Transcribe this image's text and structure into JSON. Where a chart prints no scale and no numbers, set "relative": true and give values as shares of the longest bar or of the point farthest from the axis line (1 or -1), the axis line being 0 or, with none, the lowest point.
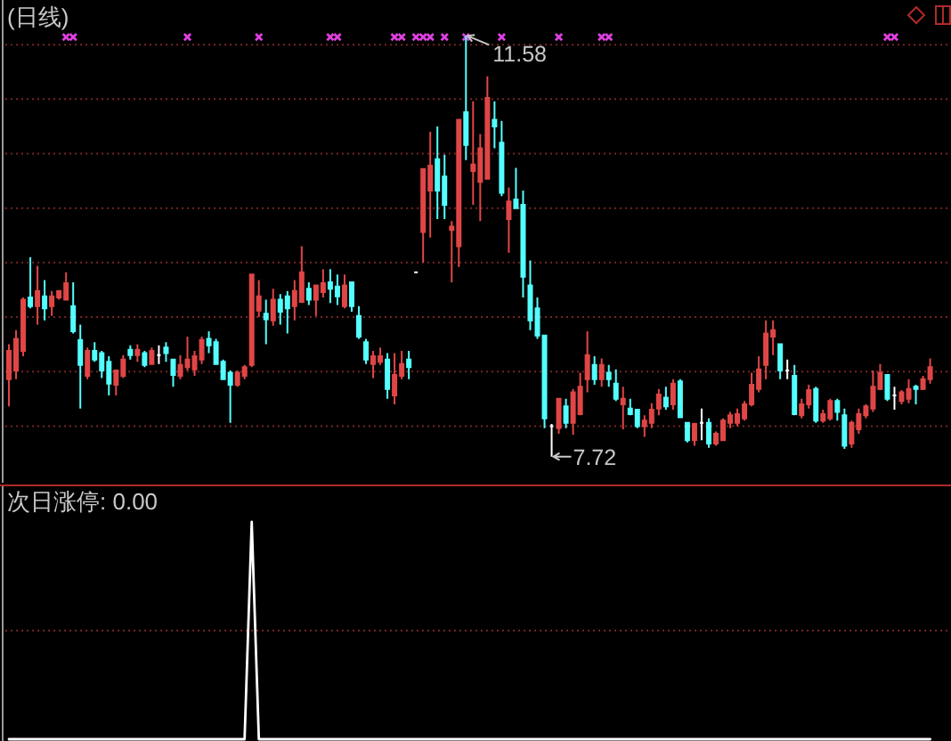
{
  "chart_data": [
    {
      "type": "candlestick",
      "title": "(日线)",
      "categories": [
        null,
        null,
        null,
        null,
        null,
        null,
        null,
        null,
        null,
        null,
        null,
        null,
        null,
        null,
        null,
        null,
        null,
        null,
        null,
        null,
        null,
        null,
        null,
        null,
        null,
        null,
        null,
        null,
        null,
        null,
        null,
        null,
        null,
        null,
        null,
        null,
        null,
        null,
        null,
        null,
        null,
        null,
        null,
        null,
        null,
        null,
        null,
        null,
        null,
        null,
        null,
        null,
        null,
        null,
        null,
        null,
        null,
        null,
        null,
        null,
        null,
        null,
        null,
        null,
        null,
        null,
        null,
        null,
        null,
        null,
        null,
        null,
        null,
        null,
        null,
        null,
        null,
        null,
        null,
        null,
        null,
        null,
        null,
        null,
        null,
        null,
        null,
        null,
        null,
        null,
        null,
        null,
        null,
        null,
        null,
        null,
        null,
        null,
        null,
        null,
        null,
        null,
        null,
        null,
        null,
        null,
        null,
        null,
        null,
        null,
        null,
        null,
        null,
        null,
        null,
        null,
        null,
        null,
        null,
        null,
        null,
        null,
        null,
        null,
        null,
        null,
        null,
        null,
        null,
        null
      ],
      "ohlc": [
        [
          8.43,
          8.75,
          8.18,
          8.69
        ],
        [
          8.51,
          8.88,
          8.43,
          8.8
        ],
        [
          8.69,
          9.18,
          8.64,
          9.16
        ],
        [
          9.18,
          9.55,
          9.08,
          9.1
        ],
        [
          9.1,
          9.47,
          8.93,
          9.24
        ],
        [
          9.19,
          9.34,
          8.97,
          9.08
        ],
        [
          9.1,
          9.24,
          9.01,
          9.19
        ],
        [
          9.18,
          9.24,
          9.16,
          9.24
        ],
        [
          9.16,
          9.41,
          9.16,
          9.31
        ],
        [
          9.1,
          9.32,
          8.85,
          8.87
        ],
        [
          8.79,
          8.93,
          8.16,
          8.56
        ],
        [
          8.46,
          8.72,
          8.43,
          8.69
        ],
        [
          8.69,
          8.77,
          8.59,
          8.61
        ],
        [
          8.67,
          8.69,
          8.44,
          8.51
        ],
        [
          8.59,
          8.64,
          8.28,
          8.39
        ],
        [
          8.38,
          8.52,
          8.28,
          8.51
        ],
        [
          8.46,
          8.65,
          8.44,
          8.61
        ],
        [
          8.7,
          8.74,
          8.61,
          8.65
        ],
        [
          8.65,
          8.75,
          8.59,
          8.7
        ],
        [
          8.67,
          8.69,
          8.54,
          8.56
        ],
        [
          8.57,
          8.72,
          8.56,
          8.69
        ],
        [
          8.65,
          8.74,
          8.57,
          8.65
        ],
        [
          8.72,
          8.77,
          8.59,
          8.67
        ],
        [
          8.61,
          8.61,
          8.36,
          8.47
        ],
        [
          8.46,
          8.65,
          8.43,
          8.56
        ],
        [
          8.54,
          8.82,
          8.51,
          8.61
        ],
        [
          8.52,
          8.69,
          8.46,
          8.64
        ],
        [
          8.61,
          8.82,
          8.57,
          8.79
        ],
        [
          8.8,
          8.87,
          8.67,
          8.74
        ],
        [
          8.77,
          8.8,
          8.56,
          8.57
        ],
        [
          8.59,
          8.61,
          8.43,
          8.43
        ],
        [
          8.49,
          8.51,
          8.03,
          8.38
        ],
        [
          8.38,
          8.51,
          8.36,
          8.49
        ],
        [
          8.46,
          8.56,
          8.43,
          8.54
        ],
        [
          8.56,
          9.39,
          8.54,
          9.39
        ],
        [
          9.06,
          9.34,
          9.0,
          9.19
        ],
        [
          9.03,
          9.16,
          8.75,
          8.98
        ],
        [
          8.97,
          9.26,
          8.92,
          9.16
        ],
        [
          9.16,
          9.21,
          8.93,
          9.05
        ],
        [
          9.19,
          9.24,
          8.85,
          9.08
        ],
        [
          9.1,
          9.34,
          8.97,
          9.24
        ],
        [
          9.14,
          9.65,
          9.13,
          9.41
        ],
        [
          9.26,
          9.32,
          9.11,
          9.16
        ],
        [
          9.16,
          9.29,
          9.01,
          9.29
        ],
        [
          9.23,
          9.44,
          9.18,
          9.31
        ],
        [
          9.32,
          9.44,
          9.13,
          9.26
        ],
        [
          9.28,
          9.39,
          9.11,
          9.19
        ],
        [
          9.1,
          9.39,
          9.08,
          9.29
        ],
        [
          9.32,
          9.32,
          9.05,
          9.1
        ],
        [
          9.01,
          9.1,
          8.8,
          8.82
        ],
        [
          8.77,
          8.8,
          8.57,
          8.61
        ],
        [
          8.57,
          8.69,
          8.44,
          8.64
        ],
        [
          8.59,
          8.72,
          8.56,
          8.64
        ],
        [
          8.61,
          8.67,
          8.25,
          8.34
        ],
        [
          8.28,
          8.67,
          8.2,
          8.47
        ],
        [
          8.46,
          8.69,
          8.43,
          8.57
        ],
        [
          8.61,
          8.69,
          8.43,
          8.54
        ],
        [
          9.41,
          9.41,
          9.41,
          9.41
        ],
        [
          9.78,
          10.36,
          9.5,
          10.36
        ],
        [
          10.16,
          10.7,
          9.73,
          10.39
        ],
        [
          10.45,
          10.75,
          9.9,
          10.16
        ],
        [
          10.29,
          10.49,
          9.9,
          10.03
        ],
        [
          9.8,
          9.88,
          9.32,
          9.83
        ],
        [
          9.65,
          10.81,
          9.46,
          10.81
        ],
        [
          10.88,
          11.58,
          10.44,
          10.58
        ],
        [
          10.34,
          10.98,
          10.03,
          10.4
        ],
        [
          10.24,
          10.68,
          9.88,
          10.55
        ],
        [
          10.27,
          11.21,
          10.27,
          11.01
        ],
        [
          10.81,
          10.98,
          10.55,
          10.75
        ],
        [
          10.6,
          10.8,
          10.11,
          10.14
        ],
        [
          9.9,
          10.19,
          9.59,
          10.06
        ],
        [
          10.08,
          10.37,
          10.0,
          10.0
        ],
        [
          10.03,
          10.16,
          9.18,
          9.37
        ],
        [
          9.29,
          9.52,
          8.88,
          8.97
        ],
        [
          9.08,
          9.18,
          8.8,
          8.83
        ],
        [
          8.83,
          8.83,
          7.98,
          8.07
        ],
        [
          8.0,
          8.02,
          7.72,
          8.0
        ],
        [
          7.98,
          8.25,
          7.93,
          8.25
        ],
        [
          8.18,
          8.25,
          7.98,
          8.03
        ],
        [
          8.03,
          8.34,
          7.92,
          8.31
        ],
        [
          8.11,
          8.49,
          8.1,
          8.36
        ],
        [
          8.43,
          8.87,
          8.31,
          8.65
        ],
        [
          8.56,
          8.64,
          8.38,
          8.43
        ],
        [
          8.43,
          8.62,
          8.36,
          8.56
        ],
        [
          8.49,
          8.56,
          8.36,
          8.43
        ],
        [
          8.39,
          8.52,
          8.23,
          8.25
        ],
        [
          8.2,
          8.36,
          7.97,
          8.25
        ],
        [
          8.16,
          8.25,
          8.1,
          8.11
        ],
        [
          8.15,
          8.15,
          7.98,
          8.0
        ],
        [
          8.0,
          8.1,
          7.9,
          8.05
        ],
        [
          8.03,
          8.21,
          7.98,
          8.15
        ],
        [
          8.16,
          8.34,
          8.1,
          8.29
        ],
        [
          8.26,
          8.36,
          8.15,
          8.18
        ],
        [
          8.2,
          8.43,
          8.15,
          8.39
        ],
        [
          8.41,
          8.43,
          8.08,
          8.08
        ],
        [
          8.03,
          8.03,
          7.85,
          7.87
        ],
        [
          7.87,
          8.03,
          7.82,
          8.02
        ],
        [
          8.03,
          8.16,
          7.87,
          8.03
        ],
        [
          8.03,
          8.07,
          7.8,
          7.84
        ],
        [
          7.84,
          7.95,
          7.82,
          7.93
        ],
        [
          7.87,
          8.07,
          7.87,
          8.05
        ],
        [
          8.03,
          8.13,
          7.98,
          8.1
        ],
        [
          8.03,
          8.16,
          8.0,
          8.11
        ],
        [
          8.07,
          8.23,
          8.05,
          8.2
        ],
        [
          8.2,
          8.49,
          8.18,
          8.38
        ],
        [
          8.34,
          8.64,
          8.31,
          8.52
        ],
        [
          8.56,
          8.97,
          8.43,
          8.85
        ],
        [
          8.82,
          8.97,
          8.65,
          8.88
        ],
        [
          8.75,
          8.75,
          8.43,
          8.51
        ],
        [
          8.51,
          8.61,
          8.43,
          8.51
        ],
        [
          8.46,
          8.56,
          8.1,
          8.11
        ],
        [
          8.1,
          8.25,
          8.07,
          8.2
        ],
        [
          8.2,
          8.38,
          8.16,
          8.33
        ],
        [
          8.34,
          8.36,
          8.03,
          8.05
        ],
        [
          8.05,
          8.15,
          8.03,
          8.11
        ],
        [
          8.07,
          8.25,
          8.05,
          8.23
        ],
        [
          8.23,
          8.25,
          8.05,
          8.13
        ],
        [
          8.1,
          8.16,
          7.79,
          7.82
        ],
        [
          7.84,
          8.05,
          7.8,
          8.03
        ],
        [
          7.97,
          8.16,
          7.93,
          8.11
        ],
        [
          8.1,
          8.2,
          8.07,
          8.18
        ],
        [
          8.16,
          8.51,
          8.13,
          8.36
        ],
        [
          8.34,
          8.57,
          8.33,
          8.49
        ],
        [
          8.47,
          8.47,
          8.23,
          8.25
        ],
        [
          8.28,
          8.36,
          8.15,
          8.28
        ],
        [
          8.23,
          8.33,
          8.2,
          8.31
        ],
        [
          8.25,
          8.43,
          8.21,
          8.34
        ],
        [
          8.36,
          8.38,
          8.2,
          8.34
        ],
        [
          8.34,
          8.46,
          8.33,
          8.43
        ],
        [
          8.43,
          8.62,
          8.39,
          8.54
        ]
      ],
      "colors": [
        "#e04646",
        "#e04646",
        "#e04646",
        "#54ffff",
        "#e04646",
        "#54ffff",
        "#e04646",
        "#e04646",
        "#e04646",
        "#54ffff",
        "#54ffff",
        "#e04646",
        "#54ffff",
        "#54ffff",
        "#54ffff",
        "#e04646",
        "#e04646",
        "#54ffff",
        "#e04646",
        "#54ffff",
        "#e04646",
        "#ffffff",
        "#54ffff",
        "#54ffff",
        "#e04646",
        "#e04646",
        "#e04646",
        "#e04646",
        "#54ffff",
        "#54ffff",
        "#54ffff",
        "#54ffff",
        "#e04646",
        "#e04646",
        "#e04646",
        "#e04646",
        "#54ffff",
        "#e04646",
        "#54ffff",
        "#54ffff",
        "#e04646",
        "#e04646",
        "#54ffff",
        "#e04646",
        "#e04646",
        "#54ffff",
        "#54ffff",
        "#e04646",
        "#54ffff",
        "#54ffff",
        "#54ffff",
        "#e04646",
        "#e04646",
        "#54ffff",
        "#e04646",
        "#e04646",
        "#54ffff",
        "#ffffff",
        "#e04646",
        "#e04646",
        "#54ffff",
        "#54ffff",
        "#e04646",
        "#e04646",
        "#54ffff",
        "#e04646",
        "#e04646",
        "#e04646",
        "#54ffff",
        "#54ffff",
        "#e04646",
        "#54ffff",
        "#54ffff",
        "#54ffff",
        "#54ffff",
        "#54ffff",
        "#ffffff",
        "#e04646",
        "#54ffff",
        "#e04646",
        "#e04646",
        "#e04646",
        "#54ffff",
        "#e04646",
        "#54ffff",
        "#54ffff",
        "#e04646",
        "#54ffff",
        "#54ffff",
        "#e04646",
        "#e04646",
        "#e04646",
        "#54ffff",
        "#e04646",
        "#54ffff",
        "#54ffff",
        "#e04646",
        "#ffffff",
        "#54ffff",
        "#e04646",
        "#e04646",
        "#e04646",
        "#e04646",
        "#e04646",
        "#e04646",
        "#e04646",
        "#e04646",
        "#e04646",
        "#54ffff",
        "#ffffff",
        "#54ffff",
        "#e04646",
        "#e04646",
        "#54ffff",
        "#e04646",
        "#e04646",
        "#54ffff",
        "#54ffff",
        "#e04646",
        "#e04646",
        "#e04646",
        "#e04646",
        "#e04646",
        "#54ffff",
        "#ffffff",
        "#e04646",
        "#e04646",
        "#54ffff",
        "#e04646",
        "#e04646"
      ],
      "series": [
        {
          "type": "scatter",
          "marker": "cross",
          "color": "#e040e0",
          "values": [
            null,
            null,
            null,
            null,
            null,
            null,
            null,
            null,
            11.57,
            11.57,
            null,
            null,
            null,
            null,
            null,
            null,
            null,
            null,
            null,
            null,
            null,
            null,
            null,
            null,
            null,
            11.57,
            null,
            null,
            null,
            null,
            null,
            null,
            null,
            null,
            null,
            11.57,
            null,
            null,
            null,
            null,
            null,
            null,
            null,
            null,
            null,
            11.57,
            11.57,
            null,
            null,
            null,
            null,
            null,
            null,
            null,
            11.57,
            11.57,
            null,
            11.57,
            11.57,
            11.57,
            null,
            11.57,
            null,
            null,
            11.57,
            null,
            null,
            null,
            null,
            11.57,
            null,
            null,
            null,
            null,
            null,
            null,
            null,
            11.57,
            null,
            null,
            null,
            null,
            null,
            11.57,
            11.57,
            null,
            null,
            null,
            null,
            null,
            null,
            null,
            null,
            null,
            null,
            null,
            null,
            null,
            null,
            null,
            null,
            null,
            null,
            null,
            null,
            null,
            null,
            null,
            null,
            null,
            null,
            null,
            null,
            null,
            null,
            null,
            null,
            null,
            null,
            null,
            null,
            null,
            null,
            11.57,
            11.57,
            null,
            null,
            null,
            null,
            null
          ]
        }
      ],
      "ylim": [
        7.48,
        11.91
      ],
      "yticks": [
        {
          "value": 8,
          "label": null
        },
        {
          "value": 8.5,
          "label": null
        },
        {
          "value": 9,
          "label": null
        },
        {
          "value": 9.5,
          "label": null
        },
        {
          "value": 10,
          "label": null
        },
        {
          "value": 10.5,
          "label": null
        },
        {
          "value": 11,
          "label": null
        },
        {
          "value": 11.5,
          "label": null
        }
      ],
      "grid": "y",
      "annotations": [
        "11.58",
        "7.72"
      ]
    },
    {
      "type": "line",
      "title": "次日涨停: 0.00",
      "relative": true,
      "categories": [
        null,
        null,
        null,
        null,
        null,
        null,
        null,
        null,
        null,
        null,
        null,
        null,
        null,
        null,
        null,
        null,
        null,
        null,
        null,
        null,
        null,
        null,
        null,
        null,
        null,
        null,
        null,
        null,
        null,
        null,
        null,
        null,
        null,
        null,
        null,
        null,
        null,
        null,
        null,
        null,
        null,
        null,
        null,
        null,
        null,
        null,
        null,
        null,
        null,
        null,
        null,
        null,
        null,
        null,
        null,
        null,
        null,
        null,
        null,
        null,
        null,
        null,
        null,
        null,
        null,
        null,
        null,
        null,
        null,
        null,
        null,
        null,
        null,
        null,
        null,
        null,
        null,
        null,
        null,
        null,
        null,
        null,
        null,
        null,
        null,
        null,
        null,
        null,
        null,
        null,
        null,
        null,
        null,
        null,
        null,
        null,
        null,
        null,
        null,
        null,
        null,
        null,
        null,
        null,
        null,
        null,
        null,
        null,
        null,
        null,
        null,
        null,
        null,
        null,
        null,
        null,
        null,
        null,
        null,
        null,
        null,
        null,
        null,
        null,
        null,
        null,
        null,
        null,
        null,
        null
      ],
      "series": [
        {
          "color": "#ffffff",
          "values": [
            0,
            0,
            0,
            0,
            0,
            0,
            0,
            0,
            0,
            0,
            0,
            0,
            0,
            0,
            0,
            0,
            0,
            0,
            0,
            0,
            0,
            0,
            0,
            0,
            0,
            0,
            0,
            0,
            0,
            0,
            0,
            0,
            0,
            0,
            1,
            0,
            0,
            0,
            0,
            0,
            0,
            0,
            0,
            0,
            0,
            0,
            0,
            0,
            0,
            0,
            0,
            0,
            0,
            0,
            0,
            0,
            0,
            0,
            0,
            0,
            0,
            0,
            0,
            0,
            0,
            0,
            0,
            0,
            0,
            0,
            0,
            0,
            0,
            0,
            0,
            0,
            0,
            0,
            0,
            0,
            0,
            0,
            0,
            0,
            0,
            0,
            0,
            0,
            0,
            0,
            0,
            0,
            0,
            0,
            0,
            0,
            0,
            0,
            0,
            0,
            0,
            0,
            0,
            0,
            0,
            0,
            0,
            0,
            0,
            0,
            0,
            0,
            0,
            0,
            0,
            0,
            0,
            0,
            0,
            0,
            0,
            0,
            0,
            0,
            0,
            0,
            0,
            0,
            0,
            0
          ]
        }
      ],
      "ref_lines": [
        {
          "axis": "y",
          "value": 0.5,
          "color": "#7a2222",
          "line_style": "dotted"
        }
      ]
    }
  ]
}
